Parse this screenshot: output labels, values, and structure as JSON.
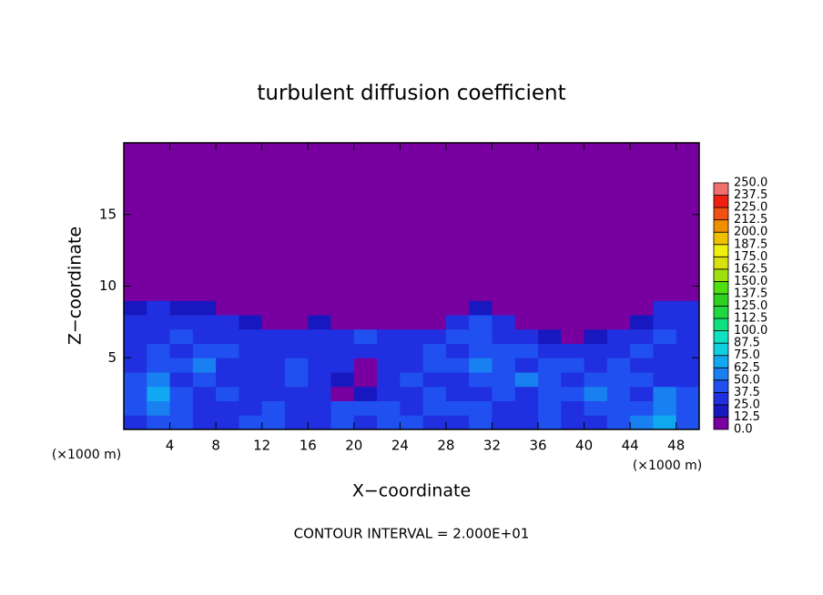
{
  "chart_data": {
    "type": "contour",
    "title": "turbulent diffusion coefficient",
    "xlabel": "X−coordinate",
    "ylabel": "Z−coordinate",
    "x_unit": "(×1000 m)",
    "footer": "CONTOUR INTERVAL = 2.000E+01",
    "xlim": [
      0,
      50
    ],
    "ylim": [
      0,
      20
    ],
    "xticks": [
      4,
      8,
      12,
      16,
      20,
      24,
      28,
      32,
      36,
      40,
      44,
      48
    ],
    "yticks": [
      5,
      10,
      15
    ],
    "colorbar": {
      "lim": [
        0,
        250
      ],
      "ticks": [
        {
          "value": 0,
          "label": "0.0"
        },
        12.5,
        {
          "value": 25,
          "label": "25.0"
        },
        37.5,
        {
          "value": 50,
          "label": "50.0"
        },
        62.5,
        {
          "value": 75,
          "label": "75.0"
        },
        87.5,
        {
          "value": 100,
          "label": "100.0"
        },
        112.5,
        {
          "value": 125,
          "label": "125.0"
        },
        137.5,
        {
          "value": 150,
          "label": "150.0"
        },
        162.5,
        {
          "value": 175,
          "label": "175.0"
        },
        187.5,
        {
          "value": 200,
          "label": "200.0"
        },
        212.5,
        {
          "value": 225,
          "label": "225.0"
        },
        237.5,
        {
          "value": 250,
          "label": "250.0"
        }
      ],
      "colors": [
        "#7800a0",
        "#1818c0",
        "#2030e0",
        "#2050f0",
        "#1880f0",
        "#10a8f0",
        "#10d0e0",
        "#10e0c0",
        "#10e080",
        "#20d840",
        "#30d020",
        "#50e010",
        "#a0e010",
        "#d8e010",
        "#f0f010",
        "#f0c000",
        "#f09000",
        "#f05010",
        "#f02010",
        "#f07070"
      ]
    },
    "field": {
      "x_edges": [
        0,
        2,
        4,
        6,
        8,
        10,
        12,
        14,
        16,
        18,
        20,
        22,
        24,
        26,
        28,
        30,
        32,
        34,
        36,
        38,
        40,
        42,
        44,
        46,
        48,
        50
      ],
      "z_edges": [
        0,
        1,
        2,
        3,
        4,
        5,
        6,
        7,
        8,
        9,
        20
      ],
      "values": [
        [
          30,
          45,
          40,
          35,
          30,
          40,
          45,
          30,
          35,
          40,
          30,
          45,
          40,
          30,
          35,
          40,
          30,
          35,
          40,
          30,
          35,
          40,
          60,
          70,
          40
        ],
        [
          40,
          60,
          45,
          35,
          30,
          30,
          40,
          35,
          30,
          40,
          45,
          40,
          35,
          40,
          45,
          40,
          35,
          30,
          40,
          35,
          45,
          40,
          45,
          60,
          45
        ],
        [
          45,
          70,
          40,
          35,
          40,
          30,
          35,
          30,
          30,
          10,
          20,
          35,
          30,
          40,
          35,
          30,
          40,
          35,
          40,
          45,
          55,
          40,
          35,
          60,
          40
        ],
        [
          40,
          55,
          35,
          45,
          30,
          30,
          35,
          40,
          30,
          20,
          10,
          30,
          40,
          35,
          30,
          40,
          45,
          55,
          40,
          35,
          40,
          45,
          40,
          35,
          30
        ],
        [
          35,
          45,
          40,
          50,
          35,
          30,
          35,
          40,
          35,
          30,
          10,
          35,
          35,
          40,
          45,
          50,
          40,
          35,
          45,
          40,
          35,
          40,
          35,
          30,
          35
        ],
        [
          30,
          40,
          35,
          45,
          40,
          30,
          30,
          35,
          30,
          35,
          30,
          35,
          30,
          40,
          35,
          40,
          45,
          40,
          30,
          35,
          30,
          35,
          40,
          35,
          30
        ],
        [
          35,
          35,
          40,
          35,
          30,
          30,
          25,
          30,
          30,
          35,
          40,
          30,
          35,
          30,
          40,
          45,
          35,
          30,
          20,
          10,
          20,
          30,
          35,
          40,
          35
        ],
        [
          30,
          35,
          30,
          30,
          25,
          20,
          10,
          10,
          20,
          10,
          10,
          10,
          10,
          10,
          30,
          40,
          30,
          5,
          5,
          5,
          5,
          5,
          20,
          30,
          30
        ],
        [
          20,
          25,
          20,
          20,
          5,
          5,
          5,
          5,
          5,
          5,
          5,
          5,
          5,
          5,
          5,
          20,
          5,
          5,
          5,
          5,
          5,
          5,
          5,
          25,
          30
        ],
        [
          0,
          0,
          0,
          0,
          0,
          0,
          0,
          0,
          0,
          0,
          0,
          0,
          0,
          0,
          0,
          0,
          0,
          0,
          0,
          0,
          0,
          0,
          0,
          0,
          0
        ]
      ]
    }
  }
}
